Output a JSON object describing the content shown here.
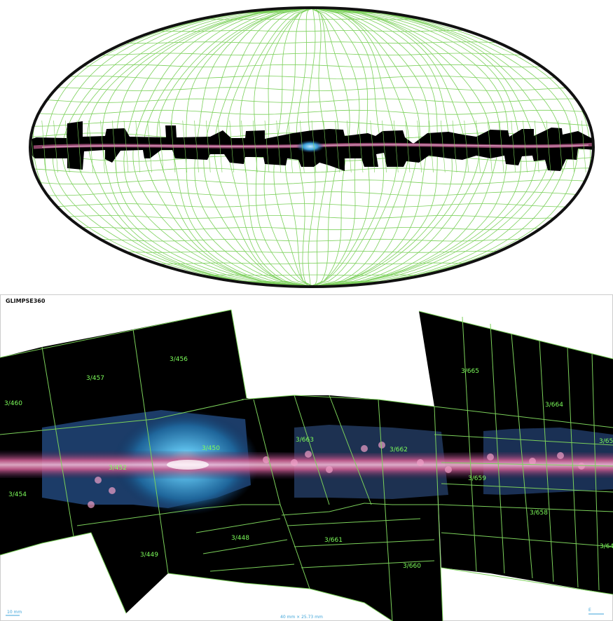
{
  "survey": {
    "title": "GLIMPSE360"
  },
  "tiles": [
    {
      "id": "t457",
      "label": "3/457"
    },
    {
      "id": "t456",
      "label": "3/456"
    },
    {
      "id": "t460",
      "label": "3/460"
    },
    {
      "id": "t452",
      "label": "3/452"
    },
    {
      "id": "t450",
      "label": "3/450"
    },
    {
      "id": "t454",
      "label": "3/454"
    },
    {
      "id": "t449",
      "label": "3/449"
    },
    {
      "id": "t448",
      "label": "3/448"
    },
    {
      "id": "t661",
      "label": "3/661"
    },
    {
      "id": "t660",
      "label": "3/660"
    },
    {
      "id": "t663",
      "label": "3/663"
    },
    {
      "id": "t662",
      "label": "3/662"
    },
    {
      "id": "t665",
      "label": "3/665"
    },
    {
      "id": "t664",
      "label": "3/664"
    },
    {
      "id": "t658",
      "label": "3/658"
    },
    {
      "id": "t659",
      "label": "3/659"
    },
    {
      "id": "t65x",
      "label": "3/65"
    },
    {
      "id": "t64x",
      "label": "3/64"
    }
  ],
  "footer": {
    "scale": "10 mm",
    "fov": "40 mm × 25.73 mm",
    "orientation_label": "E"
  },
  "colors": {
    "grid": "#7bd05a",
    "galaxy_core": "#3aa0d8",
    "galaxy_band": "#e07aa8",
    "tile_fill": "#000000"
  }
}
